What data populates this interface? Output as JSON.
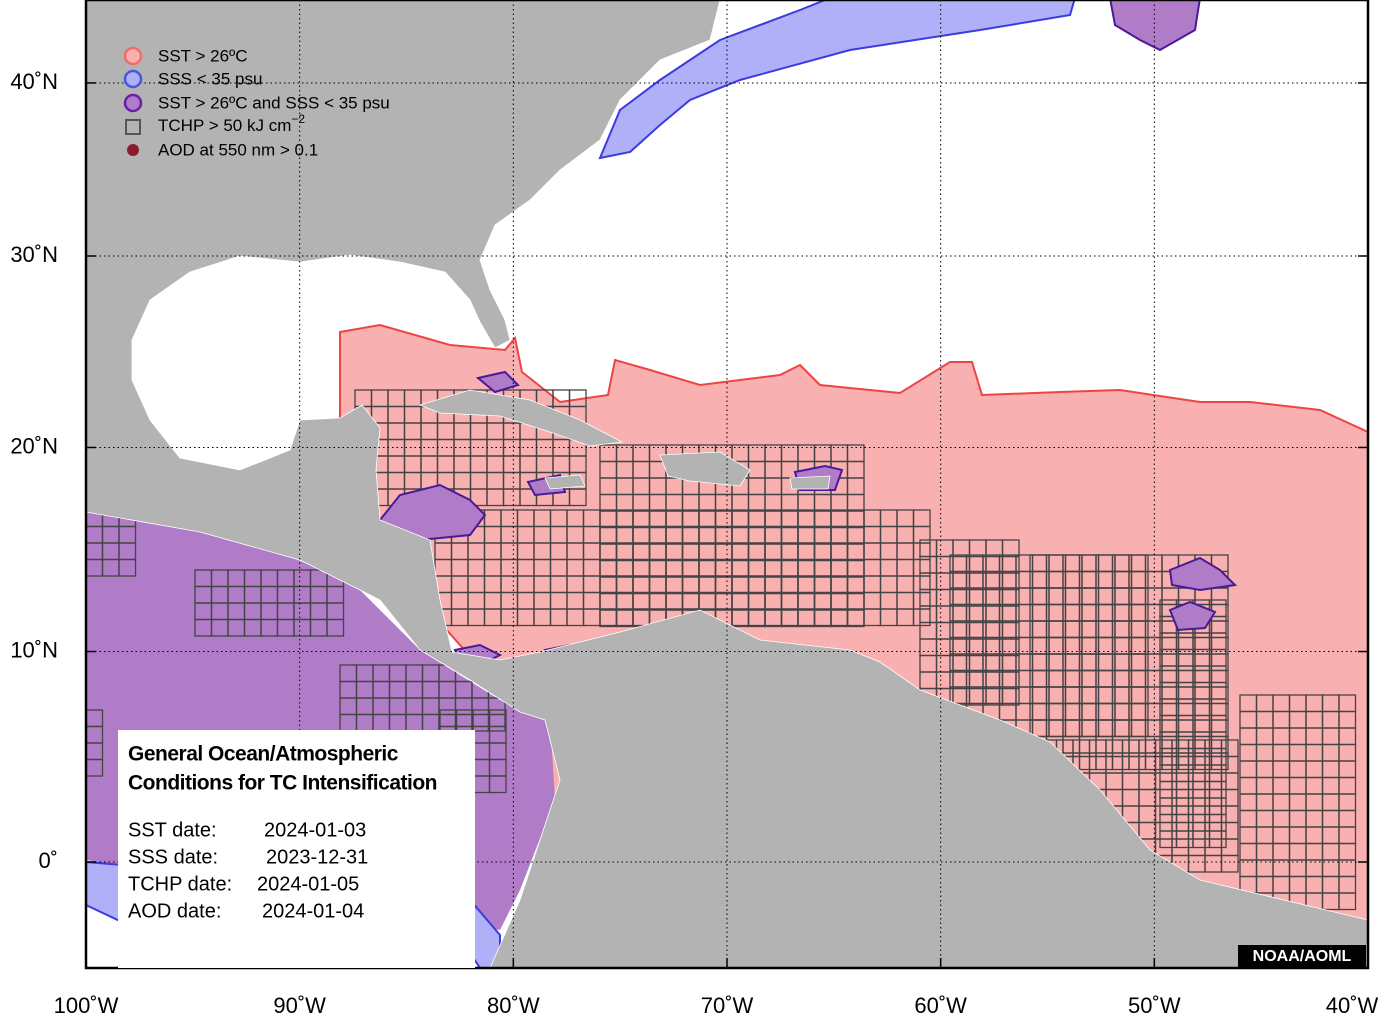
{
  "map": {
    "lon_ticks": [
      {
        "value": -100,
        "label": "100˚W"
      },
      {
        "value": -90,
        "label": "90˚W"
      },
      {
        "value": -80,
        "label": "80˚W"
      },
      {
        "value": -70,
        "label": "70˚W"
      },
      {
        "value": -60,
        "label": "60˚W"
      },
      {
        "value": -50,
        "label": "50˚W"
      },
      {
        "value": -40,
        "label": "40˚W"
      }
    ],
    "lat_ticks": [
      {
        "value": 40,
        "label": "40˚N"
      },
      {
        "value": 30,
        "label": "30˚N"
      },
      {
        "value": 20,
        "label": "20˚N"
      },
      {
        "value": 10,
        "label": "10˚N"
      },
      {
        "value": 0,
        "label": "0˚"
      }
    ],
    "grid": true
  },
  "legend": {
    "items": [
      {
        "label": "SST > 26ºC",
        "color": "#f26b6b"
      },
      {
        "label": "SSS < 35 psu",
        "color": "#4a55e0"
      },
      {
        "label": "SST > 26ºC and SSS < 35 psu",
        "color": "#6a1fa8"
      },
      {
        "label": "TCHP > 50 kJ cm",
        "label_sup": "−2",
        "color": "#555555"
      },
      {
        "label": "AOD at 550 nm > 0.1",
        "color": "#8b1a2b"
      }
    ]
  },
  "info": {
    "title_lines": [
      "General Ocean/Atmospheric",
      "Conditions for TC Intensification"
    ],
    "dates": [
      {
        "label": "SST date:",
        "date": "2024-01-03"
      },
      {
        "label": "SSS date:",
        "date": "2023-12-31"
      },
      {
        "label": "TCHP date:",
        "date": "2024-01-05"
      },
      {
        "label": "AOD date:",
        "date": "2024-01-04"
      }
    ]
  },
  "credit": "NOAA/AOML"
}
